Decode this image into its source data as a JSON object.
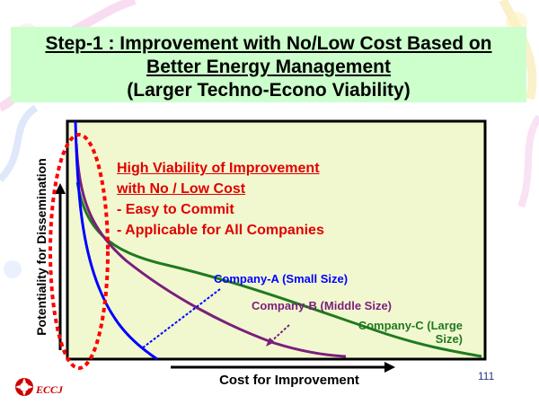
{
  "title": {
    "line1": "Step-1 : Improvement with No/Low Cost Based on",
    "line2": "Better Energy Management",
    "line3": "(Larger Techno-Econo Viability)"
  },
  "axes": {
    "y_label": "Potentiality for Dissemination",
    "x_label": "Cost for Improvement"
  },
  "annotation": {
    "heading_line1": "High Viability of Improvement",
    "heading_line2": "with No / Low Cost",
    "bullet1": "- Easy to Commit",
    "bullet2": "- Applicable for All Companies"
  },
  "series": [
    {
      "name": "Company-A (Small Size)",
      "color": "#0000ff"
    },
    {
      "name": "Company-B (Middle Size)",
      "color": "#7b1f7b"
    },
    {
      "name": "Company-C (Large",
      "name_line2": "Size)",
      "color": "#1f7a1f"
    }
  ],
  "colors": {
    "plot_background": "#f1f8d0",
    "title_background": "#ccffcc",
    "highlight_ellipse": "#ff0000",
    "annotation_text": "#e00000"
  },
  "footer": {
    "page_number": "111",
    "logo_text": "ECCJ"
  }
}
